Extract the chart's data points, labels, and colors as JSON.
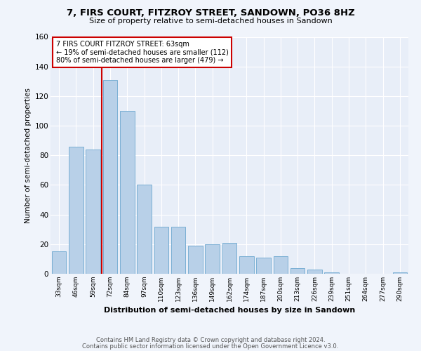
{
  "title": "7, FIRS COURT, FITZROY STREET, SANDOWN, PO36 8HZ",
  "subtitle": "Size of property relative to semi-detached houses in Sandown",
  "xlabel": "Distribution of semi-detached houses by size in Sandown",
  "ylabel": "Number of semi-detached properties",
  "categories": [
    "33sqm",
    "46sqm",
    "59sqm",
    "72sqm",
    "84sqm",
    "97sqm",
    "110sqm",
    "123sqm",
    "136sqm",
    "149sqm",
    "162sqm",
    "174sqm",
    "187sqm",
    "200sqm",
    "213sqm",
    "226sqm",
    "239sqm",
    "251sqm",
    "264sqm",
    "277sqm",
    "290sqm"
  ],
  "values": [
    15,
    86,
    84,
    131,
    110,
    60,
    32,
    32,
    19,
    20,
    21,
    12,
    11,
    12,
    4,
    3,
    1,
    0,
    0,
    0,
    1
  ],
  "bar_color": "#b8d0e8",
  "bar_edge_color": "#7aafd4",
  "marker_index": 2,
  "marker_color": "#cc0000",
  "ylim": [
    0,
    160
  ],
  "yticks": [
    0,
    20,
    40,
    60,
    80,
    100,
    120,
    140,
    160
  ],
  "annotation_line1": "7 FIRS COURT FITZROY STREET: 63sqm",
  "annotation_line2": "← 19% of semi-detached houses are smaller (112)",
  "annotation_line3": "80% of semi-detached houses are larger (479) →",
  "footer1": "Contains HM Land Registry data © Crown copyright and database right 2024.",
  "footer2": "Contains public sector information licensed under the Open Government Licence v3.0.",
  "background_color": "#f0f4fb",
  "plot_bg_color": "#e8eef8"
}
